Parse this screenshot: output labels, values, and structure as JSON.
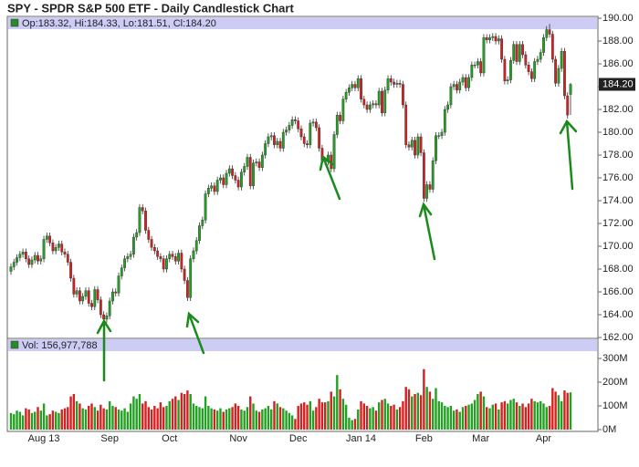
{
  "chart_data": {
    "type": "candlestick",
    "title": "SPY - SPDR S&P 500 ETF - Daily Candlestick Chart",
    "info_text": "Op:183.32, Hi:184.33, Lo:181.51, Cl:184.20",
    "volume_text": "Vol: 156,977,788",
    "last_price": {
      "value": 184.2,
      "label": "184.20"
    },
    "up_color": "#22a022",
    "down_color": "#d42020",
    "categories": [
      null,
      null,
      null,
      null,
      null,
      null,
      null,
      null,
      null,
      null,
      null,
      "Aug 13",
      null,
      null,
      null,
      null,
      null,
      null,
      null,
      null,
      null,
      null,
      null,
      null,
      null,
      null,
      null,
      null,
      null,
      null,
      null,
      null,
      null,
      "Sep",
      null,
      null,
      null,
      null,
      null,
      null,
      null,
      null,
      null,
      null,
      null,
      null,
      null,
      null,
      null,
      null,
      null,
      null,
      null,
      "Oct",
      null,
      null,
      null,
      null,
      null,
      null,
      null,
      null,
      null,
      null,
      null,
      null,
      null,
      null,
      null,
      null,
      null,
      null,
      null,
      null,
      null,
      null,
      "Nov",
      null,
      null,
      null,
      null,
      null,
      null,
      null,
      null,
      null,
      null,
      null,
      null,
      null,
      null,
      null,
      null,
      null,
      null,
      null,
      "Dec",
      null,
      null,
      null,
      null,
      null,
      null,
      null,
      null,
      null,
      null,
      null,
      null,
      null,
      null,
      null,
      null,
      null,
      null,
      null,
      null,
      "Jan 14",
      null,
      null,
      null,
      null,
      null,
      null,
      null,
      null,
      null,
      null,
      null,
      null,
      null,
      null,
      null,
      null,
      null,
      null,
      null,
      null,
      "Feb",
      null,
      null,
      null,
      null,
      null,
      null,
      null,
      null,
      null,
      null,
      null,
      null,
      null,
      null,
      null,
      null,
      null,
      null,
      "Mar",
      null,
      null,
      null,
      null,
      null,
      null,
      null,
      null,
      null,
      null,
      null,
      null,
      null,
      null,
      null,
      null,
      null,
      null,
      null,
      null,
      "Apr",
      null,
      null,
      null,
      null,
      null,
      null,
      null,
      null,
      null
    ],
    "open": [
      167.8,
      168.2,
      168.6,
      169.0,
      169.3,
      169.5,
      168.9,
      168.4,
      168.8,
      169.2,
      168.7,
      168.9,
      170.6,
      170.9,
      170.3,
      169.6,
      169.9,
      170.2,
      169.5,
      169.3,
      168.6,
      167.2,
      165.8,
      166.1,
      165.2,
      165.6,
      166.1,
      165.0,
      164.7,
      166.2,
      165.3,
      164.0,
      163.6,
      163.9,
      165.2,
      166.0,
      165.9,
      167.4,
      168.1,
      168.9,
      169.1,
      169.3,
      170.8,
      171.2,
      173.4,
      173.1,
      171.4,
      170.6,
      169.9,
      169.6,
      169.1,
      168.9,
      168.0,
      168.9,
      169.3,
      169.1,
      168.7,
      169.4,
      168.0,
      167.0,
      165.5,
      168.9,
      169.6,
      170.5,
      171.8,
      172.3,
      174.6,
      175.1,
      175.3,
      174.8,
      175.8,
      176.0,
      175.4,
      176.4,
      176.8,
      176.2,
      175.8,
      175.2,
      176.5,
      177.0,
      177.8,
      175.3,
      177.3,
      177.4,
      176.9,
      178.0,
      179.0,
      179.6,
      179.7,
      178.9,
      179.2,
      178.6,
      180.0,
      180.2,
      180.6,
      181.1,
      181.0,
      180.3,
      179.6,
      179.0,
      178.9,
      180.8,
      180.9,
      180.4,
      178.6,
      177.5,
      177.4,
      178.0,
      176.8,
      179.8,
      181.5,
      181.0,
      182.9,
      183.5,
      183.9,
      184.2,
      183.9,
      184.7,
      182.9,
      182.4,
      182.0,
      182.4,
      182.5,
      182.4,
      183.6,
      181.7,
      183.7,
      184.7,
      184.4,
      184.2,
      184.3,
      184.2,
      182.4,
      178.9,
      178.7,
      179.3,
      178.0,
      179.6,
      178.2,
      174.2,
      175.4,
      175.0,
      177.5,
      179.7,
      179.7,
      180.0,
      182.0,
      182.4,
      184.0,
      184.2,
      183.7,
      184.4,
      184.8,
      183.9,
      184.8,
      185.9,
      185.9,
      186.2,
      185.2,
      188.3,
      188.1,
      188.3,
      188.4,
      188.0,
      188.2,
      186.4,
      184.5,
      184.6,
      186.3,
      187.7,
      186.2,
      187.7,
      186.8,
      185.9,
      185.3,
      184.7,
      186.2,
      186.4,
      187.0,
      188.3,
      189.0,
      188.6,
      186.4,
      184.3,
      185.6,
      187.1,
      183.2,
      183.32
    ],
    "high": [
      168.5,
      168.9,
      169.3,
      169.6,
      169.8,
      169.8,
      169.2,
      169.1,
      169.5,
      169.5,
      169.2,
      170.9,
      171.2,
      171.2,
      170.6,
      170.2,
      170.5,
      170.5,
      169.8,
      169.6,
      168.9,
      167.5,
      166.4,
      166.4,
      165.9,
      166.4,
      166.4,
      165.3,
      166.5,
      166.5,
      165.6,
      164.3,
      164.2,
      165.5,
      166.3,
      166.3,
      167.7,
      168.4,
      169.2,
      169.4,
      169.6,
      171.1,
      171.5,
      173.7,
      173.7,
      173.4,
      171.7,
      170.9,
      170.2,
      169.9,
      169.4,
      169.2,
      169.2,
      169.6,
      169.6,
      169.4,
      169.7,
      169.7,
      168.3,
      167.3,
      169.2,
      169.9,
      170.8,
      172.1,
      172.6,
      174.9,
      175.4,
      175.6,
      175.6,
      176.1,
      176.3,
      176.3,
      176.7,
      177.1,
      177.1,
      176.5,
      176.1,
      176.8,
      177.3,
      178.1,
      178.1,
      177.6,
      177.7,
      177.7,
      178.3,
      179.3,
      179.9,
      180.0,
      180.0,
      179.5,
      179.5,
      180.3,
      180.5,
      180.9,
      181.4,
      181.4,
      181.3,
      180.6,
      179.9,
      179.3,
      181.1,
      181.2,
      181.2,
      180.7,
      178.9,
      177.8,
      178.3,
      178.3,
      180.1,
      181.8,
      181.8,
      183.2,
      183.8,
      184.2,
      184.5,
      184.5,
      185.0,
      185.0,
      183.2,
      182.7,
      182.7,
      182.8,
      182.8,
      183.9,
      183.9,
      184.0,
      185.0,
      185.0,
      184.7,
      184.6,
      184.6,
      184.5,
      182.7,
      179.2,
      179.6,
      179.6,
      179.9,
      179.9,
      178.5,
      175.7,
      175.7,
      177.8,
      180.0,
      180.0,
      180.3,
      182.3,
      182.7,
      184.3,
      184.5,
      184.5,
      184.7,
      185.1,
      185.1,
      185.1,
      186.2,
      186.2,
      186.5,
      186.5,
      188.6,
      188.6,
      188.6,
      188.7,
      188.7,
      188.5,
      188.5,
      186.7,
      184.9,
      186.6,
      188.0,
      188.0,
      188.0,
      188.0,
      187.1,
      186.2,
      185.6,
      186.5,
      186.7,
      187.3,
      188.6,
      189.3,
      189.5,
      188.9,
      186.7,
      185.9,
      187.4,
      187.4,
      183.5,
      184.33
    ],
    "low": [
      167.5,
      167.9,
      168.3,
      168.7,
      169.0,
      168.6,
      168.1,
      168.1,
      168.5,
      168.4,
      168.4,
      168.6,
      170.3,
      170.0,
      169.3,
      169.3,
      169.6,
      169.2,
      169.0,
      168.3,
      166.9,
      165.5,
      165.5,
      164.9,
      164.9,
      165.3,
      164.7,
      164.4,
      164.4,
      165.0,
      163.7,
      163.3,
      163.3,
      163.6,
      164.9,
      165.6,
      165.6,
      167.1,
      167.8,
      168.6,
      168.8,
      169.0,
      170.5,
      170.9,
      172.8,
      171.1,
      170.3,
      169.6,
      169.3,
      168.8,
      168.6,
      167.7,
      167.7,
      168.6,
      168.8,
      168.4,
      168.4,
      167.7,
      166.7,
      165.2,
      165.2,
      168.6,
      169.3,
      170.2,
      171.5,
      172.0,
      174.3,
      174.8,
      174.5,
      174.5,
      175.5,
      175.1,
      175.1,
      176.1,
      175.9,
      175.5,
      174.9,
      174.9,
      176.2,
      176.7,
      175.0,
      175.0,
      177.0,
      176.6,
      176.6,
      177.7,
      178.7,
      179.3,
      178.6,
      178.6,
      178.3,
      178.3,
      179.7,
      179.9,
      180.3,
      180.7,
      180.0,
      179.3,
      178.7,
      178.6,
      178.6,
      180.5,
      180.1,
      178.3,
      177.2,
      177.1,
      177.1,
      176.5,
      176.5,
      179.5,
      180.7,
      180.7,
      182.6,
      183.2,
      183.6,
      183.6,
      183.6,
      182.6,
      182.1,
      181.7,
      181.7,
      182.1,
      182.1,
      182.1,
      181.4,
      181.4,
      183.4,
      184.1,
      183.9,
      183.9,
      183.9,
      182.1,
      178.6,
      178.4,
      178.4,
      177.7,
      177.7,
      177.9,
      173.9,
      173.9,
      174.7,
      174.7,
      177.2,
      179.4,
      179.4,
      179.7,
      181.7,
      182.1,
      183.7,
      183.4,
      183.4,
      184.1,
      183.6,
      183.6,
      184.5,
      185.6,
      185.6,
      184.9,
      184.9,
      187.8,
      187.8,
      188.0,
      187.7,
      187.7,
      186.1,
      184.2,
      184.2,
      184.3,
      186.0,
      185.9,
      185.9,
      186.5,
      185.6,
      185.0,
      184.4,
      184.4,
      185.9,
      186.1,
      186.7,
      188.0,
      188.3,
      186.1,
      184.0,
      184.0,
      185.3,
      182.9,
      181.2,
      181.51
    ],
    "close": [
      168.2,
      168.6,
      169.0,
      169.3,
      169.5,
      168.9,
      168.4,
      168.8,
      169.2,
      168.7,
      168.9,
      170.6,
      170.9,
      170.3,
      169.6,
      169.9,
      170.2,
      169.5,
      169.3,
      168.6,
      167.2,
      165.8,
      166.1,
      165.2,
      165.6,
      166.1,
      165.0,
      164.7,
      166.2,
      165.3,
      164.0,
      163.6,
      163.9,
      165.2,
      166.0,
      165.9,
      167.4,
      168.1,
      168.9,
      169.1,
      169.3,
      170.8,
      171.2,
      173.4,
      173.1,
      171.4,
      170.6,
      169.9,
      169.6,
      169.1,
      168.9,
      168.0,
      168.9,
      169.3,
      169.1,
      168.7,
      169.4,
      168.0,
      167.0,
      165.5,
      168.9,
      169.6,
      170.5,
      171.8,
      172.3,
      174.6,
      175.1,
      175.3,
      174.8,
      175.8,
      176.0,
      175.4,
      176.4,
      176.8,
      176.2,
      175.8,
      175.2,
      176.5,
      177.0,
      177.8,
      175.3,
      177.3,
      177.4,
      176.9,
      178.0,
      179.0,
      179.6,
      179.7,
      178.9,
      179.2,
      178.6,
      180.0,
      180.2,
      180.6,
      181.1,
      181.0,
      180.3,
      179.6,
      179.0,
      178.9,
      180.8,
      180.9,
      180.4,
      178.6,
      177.5,
      177.4,
      178.0,
      176.8,
      179.8,
      181.5,
      181.0,
      182.9,
      183.5,
      183.9,
      184.2,
      183.9,
      184.7,
      182.9,
      182.4,
      182.0,
      182.4,
      182.5,
      182.4,
      183.6,
      181.7,
      183.7,
      184.7,
      184.4,
      184.2,
      184.3,
      184.2,
      182.4,
      178.9,
      178.7,
      179.3,
      178.0,
      179.6,
      178.2,
      174.2,
      175.4,
      175.0,
      177.5,
      179.7,
      179.7,
      180.0,
      182.0,
      182.4,
      184.0,
      184.2,
      183.7,
      184.4,
      184.8,
      183.9,
      184.8,
      185.9,
      185.9,
      186.2,
      185.2,
      188.3,
      188.1,
      188.3,
      188.4,
      188.0,
      188.2,
      186.4,
      184.5,
      184.6,
      186.3,
      187.7,
      186.2,
      187.7,
      186.8,
      185.9,
      185.3,
      184.7,
      186.2,
      186.4,
      187.0,
      188.3,
      189.0,
      188.6,
      186.4,
      184.3,
      185.6,
      187.1,
      183.2,
      181.5,
      184.2
    ],
    "volume": [
      70,
      65,
      80,
      75,
      60,
      90,
      85,
      70,
      75,
      95,
      80,
      110,
      60,
      65,
      80,
      75,
      70,
      85,
      90,
      95,
      140,
      150,
      120,
      110,
      90,
      85,
      100,
      110,
      95,
      80,
      105,
      90,
      85,
      120,
      100,
      95,
      85,
      80,
      90,
      75,
      110,
      140,
      130,
      150,
      110,
      120,
      95,
      85,
      100,
      90,
      115,
      95,
      100,
      120,
      130,
      140,
      125,
      155,
      150,
      165,
      150,
      110,
      100,
      95,
      90,
      140,
      100,
      90,
      85,
      80,
      90,
      75,
      85,
      90,
      95,
      110,
      100,
      85,
      80,
      95,
      140,
      110,
      80,
      75,
      85,
      90,
      100,
      85,
      120,
      110,
      95,
      90,
      80,
      70,
      60,
      45,
      100,
      110,
      115,
      105,
      120,
      80,
      95,
      130,
      115,
      115,
      120,
      160,
      140,
      230,
      170,
      130,
      105,
      50,
      40,
      45,
      85,
      120,
      110,
      100,
      90,
      95,
      80,
      115,
      125,
      130,
      110,
      100,
      105,
      85,
      95,
      120,
      180,
      170,
      140,
      150,
      155,
      145,
      255,
      180,
      160,
      130,
      175,
      120,
      115,
      100,
      95,
      100,
      80,
      85,
      75,
      95,
      100,
      105,
      110,
      125,
      150,
      160,
      140,
      95,
      90,
      105,
      110,
      85,
      115,
      120,
      110,
      125,
      130,
      115,
      100,
      110,
      95,
      110,
      130,
      120,
      115,
      120,
      110,
      95,
      100,
      175,
      160,
      145,
      120,
      165,
      155,
      156.977788
    ],
    "ylim": [
      162,
      190
    ],
    "yticks": [
      {
        "value": 162,
        "label": "162.00"
      },
      {
        "value": 164,
        "label": "164.00"
      },
      {
        "value": 166,
        "label": "166.00"
      },
      {
        "value": 168,
        "label": "168.00"
      },
      {
        "value": 170,
        "label": "170.00"
      },
      {
        "value": 172,
        "label": "172.00"
      },
      {
        "value": 174,
        "label": "174.00"
      },
      {
        "value": 176,
        "label": "176.00"
      },
      {
        "value": 178,
        "label": "178.00"
      },
      {
        "value": 180,
        "label": "180.00"
      },
      {
        "value": 182,
        "label": "182.00"
      },
      {
        "value": 184,
        "label": "184.00"
      },
      {
        "value": 186,
        "label": "186.00"
      },
      {
        "value": 188,
        "label": "188.00"
      },
      {
        "value": 190,
        "label": "190.00"
      }
    ],
    "y2lim": [
      0,
      300
    ],
    "y2ticks": [
      {
        "value": 0,
        "label": "0M"
      },
      {
        "value": 100,
        "label": "100M"
      },
      {
        "value": 200,
        "label": "200M"
      },
      {
        "value": 300,
        "label": "300M"
      }
    ]
  }
}
